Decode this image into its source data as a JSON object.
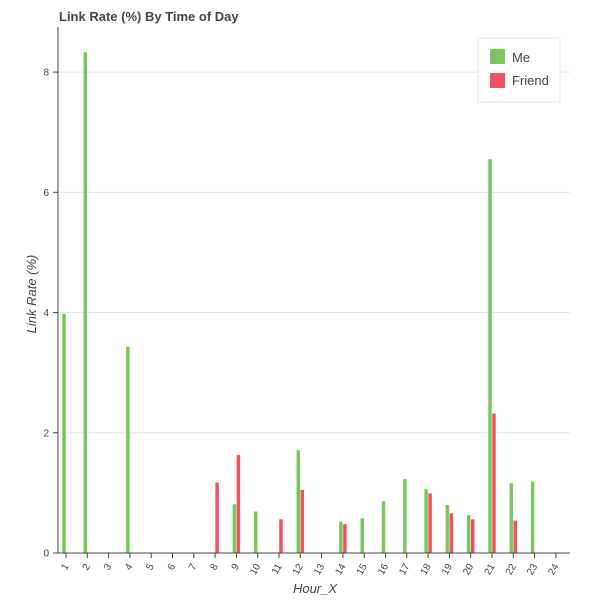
{
  "chart_data": {
    "type": "bar",
    "title": "Link Rate (%) By Time of Day",
    "xlabel": "Hour_X",
    "ylabel": "Link Rate (%)",
    "ylim": [
      0,
      8.75
    ],
    "yticks": [
      0,
      2,
      4,
      6,
      8
    ],
    "grid": true,
    "legend_position": "top-right",
    "categories": [
      "1",
      "2",
      "3",
      "4",
      "5",
      "6",
      "7",
      "8",
      "9",
      "10",
      "11",
      "12",
      "13",
      "14",
      "15",
      "16",
      "17",
      "18",
      "19",
      "20",
      "21",
      "22",
      "23",
      "24"
    ],
    "series": [
      {
        "name": "Me",
        "color": "#7ac65e",
        "values": [
          3.98,
          8.33,
          0,
          3.43,
          0,
          0,
          0,
          0,
          0.81,
          0.69,
          0,
          1.71,
          0,
          0.52,
          0.58,
          0.86,
          1.23,
          1.06,
          0.8,
          0.63,
          6.55,
          1.16,
          1.19,
          0
        ]
      },
      {
        "name": "Friend",
        "color": "#ef5263",
        "values": [
          0,
          0,
          0,
          0,
          0,
          0,
          0,
          1.17,
          1.63,
          0,
          0.56,
          1.05,
          0,
          0.48,
          0,
          0,
          0,
          0.99,
          0.66,
          0.56,
          2.32,
          0.54,
          0,
          0
        ]
      }
    ]
  }
}
